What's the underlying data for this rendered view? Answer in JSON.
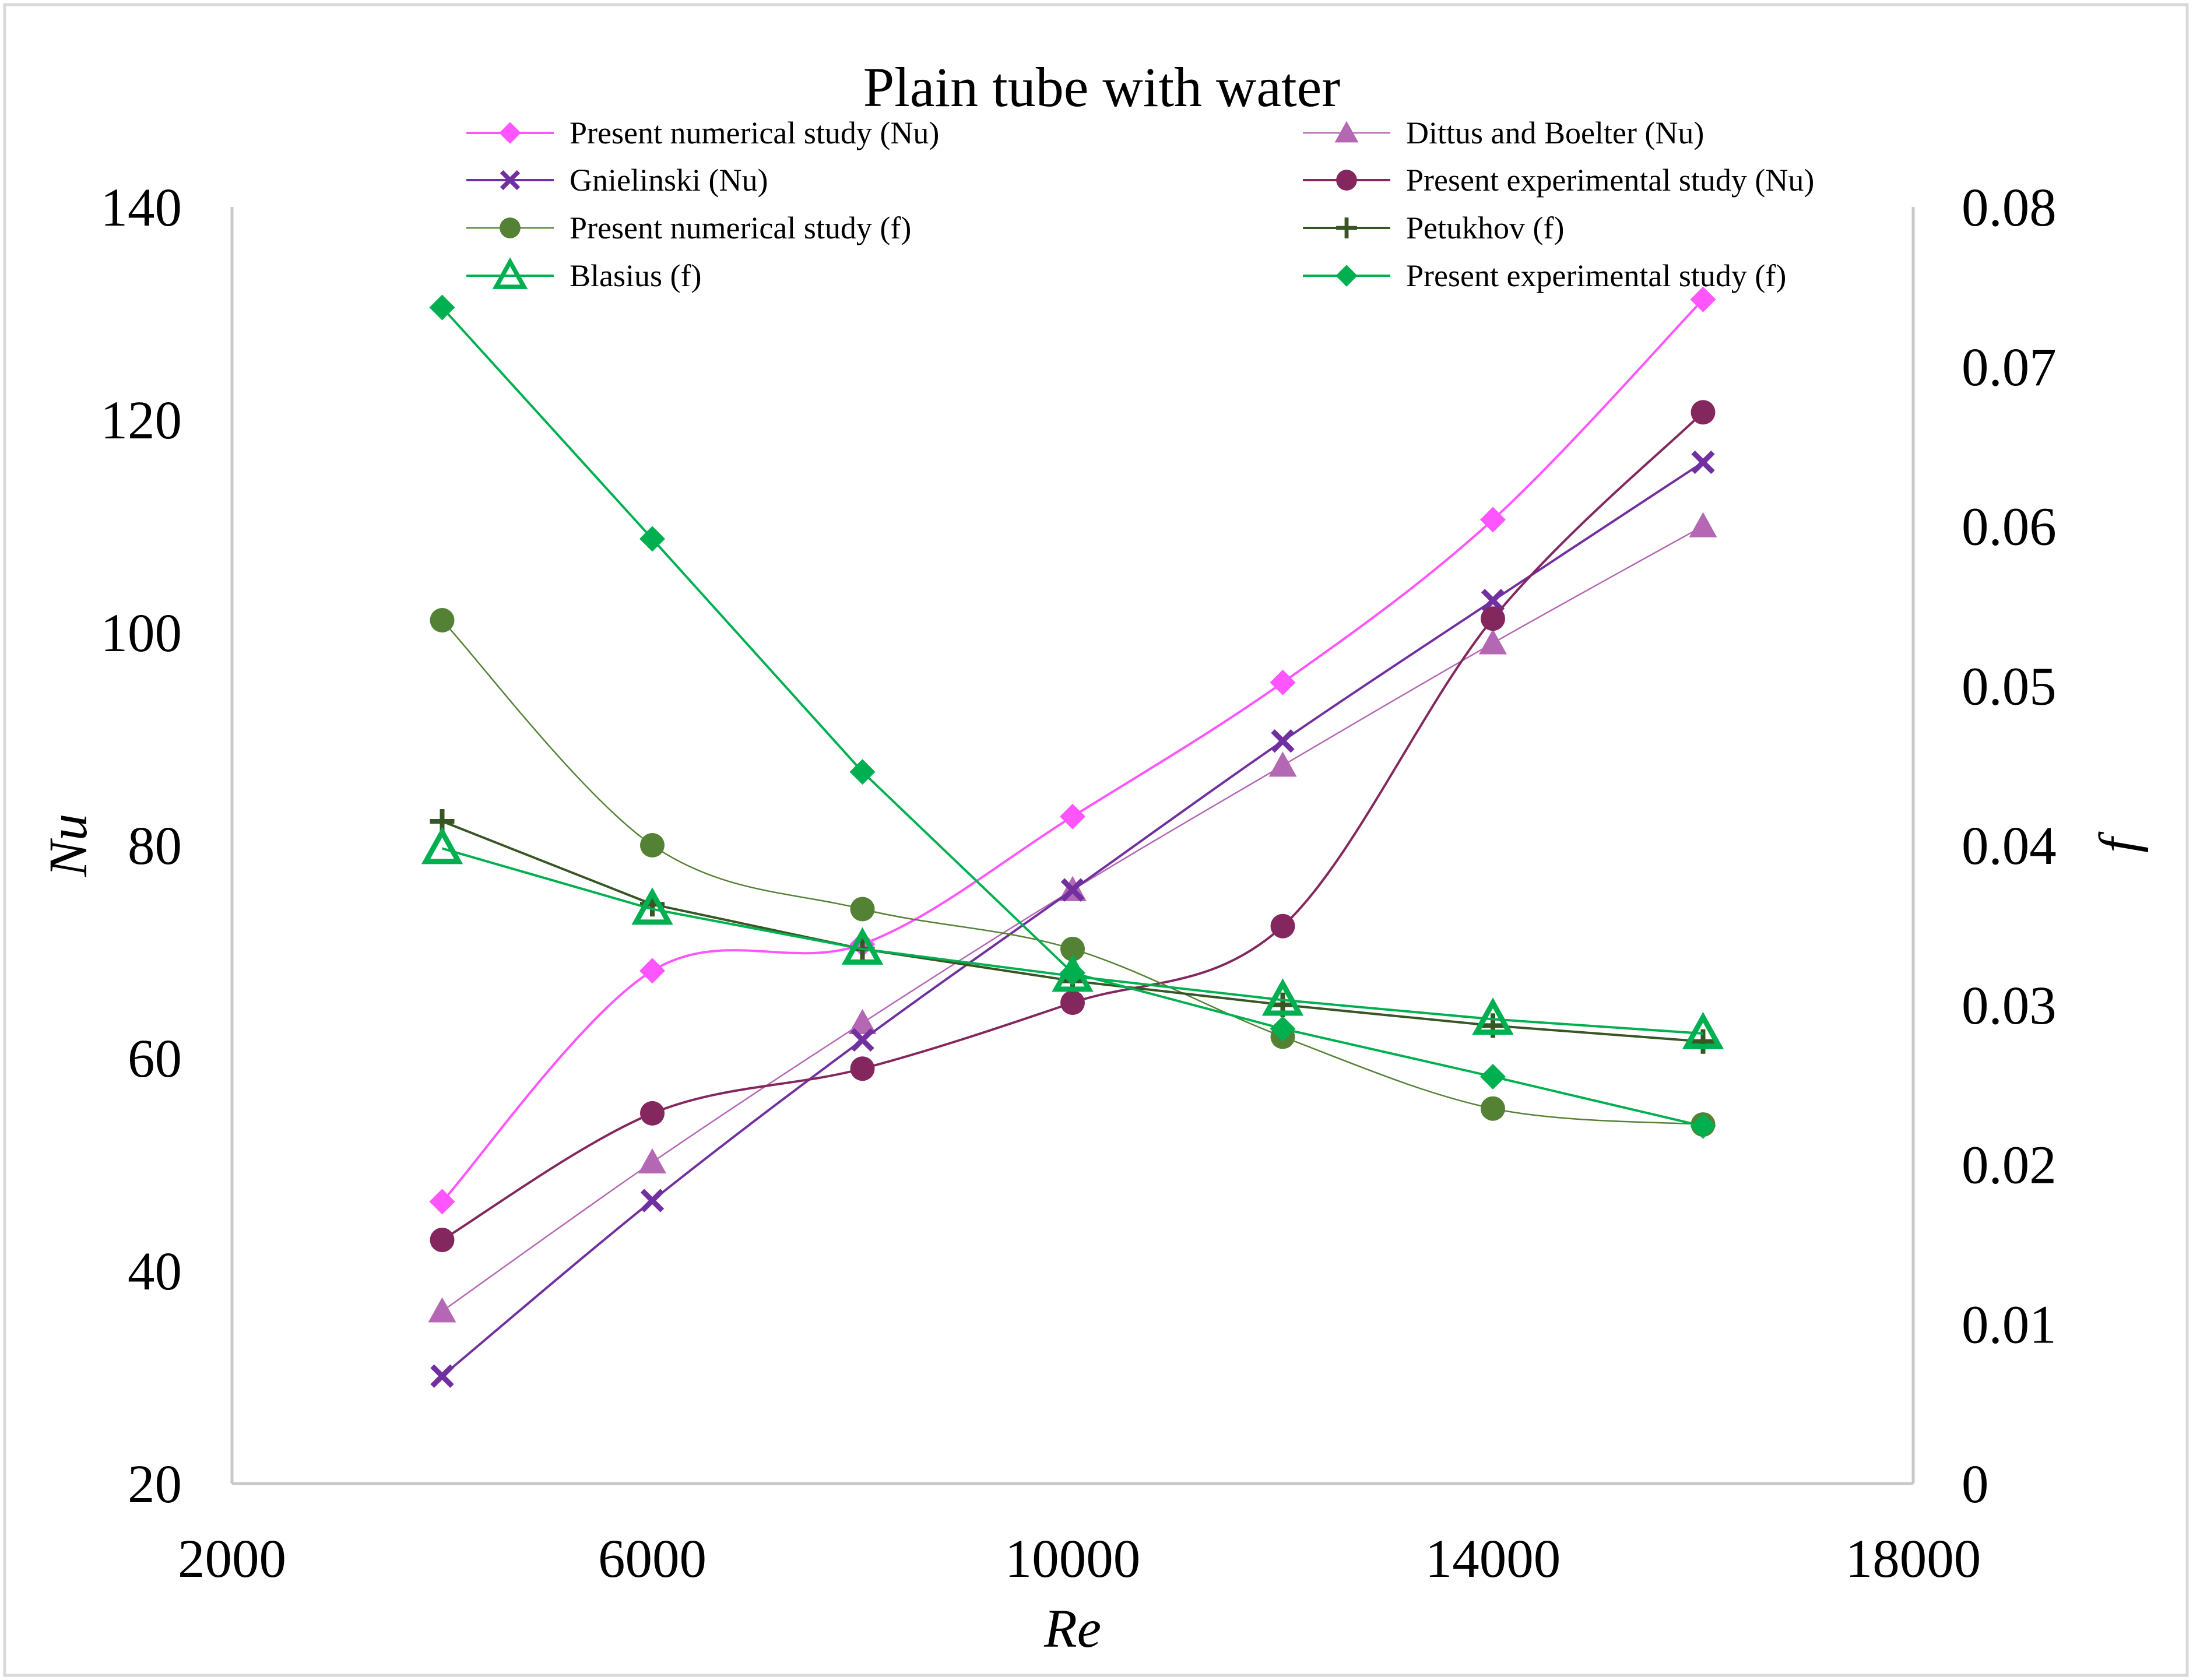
{
  "chart_data": {
    "type": "line",
    "title": "Plain tube with water",
    "xlabel": "Re",
    "ylabel_left": "Nu",
    "ylabel_right": "f",
    "xlim": [
      2000,
      18000
    ],
    "ylim_left": [
      20,
      140
    ],
    "ylim_right": [
      0,
      0.08
    ],
    "x_ticks": [
      "2000",
      "6000",
      "10000",
      "14000",
      "18000"
    ],
    "y_left_ticks": [
      "20",
      "40",
      "60",
      "80",
      "100",
      "120",
      "140"
    ],
    "y_right_ticks": [
      "0",
      "0.01",
      "0.02",
      "0.03",
      "0.04",
      "0.05",
      "0.06",
      "0.07",
      "0.08"
    ],
    "grid": false,
    "legend_position": "top",
    "x": [
      4000,
      6000,
      8000,
      10000,
      12000,
      14000,
      16000
    ],
    "series": [
      {
        "name": "Present numerical study (Nu)",
        "axis": "left",
        "color": "#ff55ff",
        "marker": "diamond",
        "values": [
          46.5,
          68.2,
          70.7,
          82.7,
          95.3,
          110.6,
          131.3
        ]
      },
      {
        "name": "Dittus and Boelter (Nu)",
        "axis": "left",
        "color": "#b468b4",
        "marker": "triangle",
        "values": [
          36.2,
          50.2,
          63.3,
          75.8,
          87.5,
          99.0,
          110.0
        ]
      },
      {
        "name": "Gnielinski (Nu)",
        "axis": "left",
        "color": "#7030a0",
        "marker": "x",
        "values": [
          30.1,
          46.6,
          61.7,
          75.8,
          89.8,
          103.0,
          116.0
        ]
      },
      {
        "name": "Present experimental study (Nu)",
        "axis": "left",
        "color": "#84275e",
        "marker": "circle",
        "values": [
          42.9,
          54.8,
          59.0,
          65.2,
          72.4,
          101.3,
          120.7
        ]
      },
      {
        "name": "Present numerical study (f)",
        "axis": "right",
        "color": "#548235",
        "marker": "circle",
        "values": [
          0.0541,
          0.04,
          0.036,
          0.0335,
          0.028,
          0.0235,
          0.0225
        ]
      },
      {
        "name": "Petukhov (f)",
        "axis": "right",
        "color": "#375623",
        "marker": "plus",
        "values": [
          0.0415,
          0.0363,
          0.0335,
          0.0315,
          0.03,
          0.0287,
          0.0277
        ]
      },
      {
        "name": "Blasius (f)",
        "axis": "right",
        "color": "#00b050",
        "marker": "open-triangle",
        "values": [
          0.0398,
          0.036,
          0.0335,
          0.0318,
          0.0303,
          0.0291,
          0.0282
        ]
      },
      {
        "name": "Present experimental study (f)",
        "axis": "right",
        "color": "#00b050",
        "marker": "diamond",
        "values": [
          0.0737,
          0.0592,
          0.0446,
          0.032,
          0.0285,
          0.0255,
          0.0224
        ]
      }
    ]
  }
}
